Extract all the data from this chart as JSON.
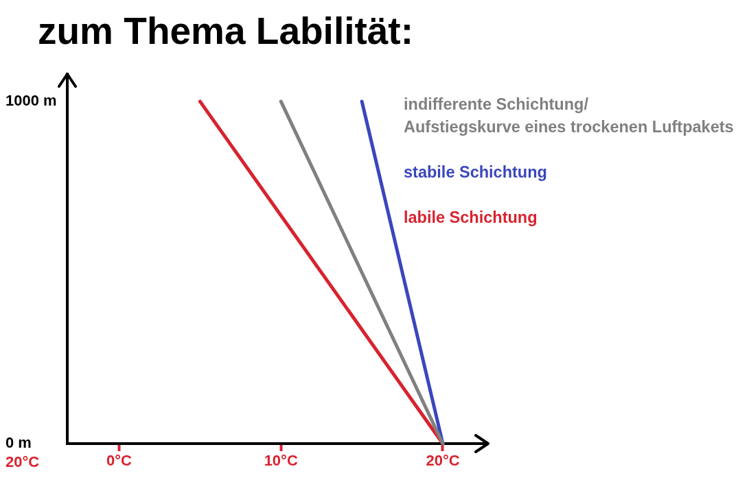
{
  "chart_data": {
    "type": "line",
    "title": "zum Thema Labilität:",
    "series": [
      {
        "name": "indifferente Schichtung/\nAufstiegskurve eines trockenen Luftpakets",
        "color": "#808080",
        "x": [
          20,
          10
        ],
        "values": [
          0,
          1000
        ]
      },
      {
        "name": "stabile Schichtung",
        "color": "#3b46bd",
        "x": [
          20,
          15
        ],
        "values": [
          0,
          1000
        ]
      },
      {
        "name": "labile Schichtung",
        "color": "#d8232f",
        "x": [
          20,
          5
        ],
        "values": [
          0,
          1000
        ]
      }
    ],
    "xlim": [
      -3.2,
      22.8
    ],
    "xticks": [
      {
        "value": 0,
        "label": "0°C"
      },
      {
        "value": 10,
        "label": "10°C"
      },
      {
        "value": 20,
        "label": "20°C"
      }
    ],
    "ylim": [
      0,
      1080
    ],
    "yticks": [
      {
        "value": 0,
        "label": "0 m"
      },
      {
        "value": 1000,
        "label": "1000 m"
      }
    ],
    "annotations": [
      "20°C"
    ],
    "legend": "top right",
    "marker": "none",
    "line_style": "solid"
  }
}
